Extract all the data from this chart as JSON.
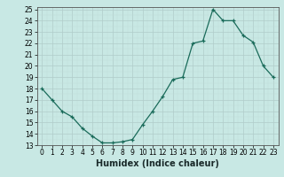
{
  "x": [
    0,
    1,
    2,
    3,
    4,
    5,
    6,
    7,
    8,
    9,
    10,
    11,
    12,
    13,
    14,
    15,
    16,
    17,
    18,
    19,
    20,
    21,
    22,
    23
  ],
  "y": [
    18,
    17,
    16,
    15.5,
    14.5,
    13.8,
    13.2,
    13.2,
    13.3,
    13.5,
    14.8,
    16.0,
    17.3,
    18.8,
    19.0,
    22.0,
    22.2,
    25.0,
    24.0,
    24.0,
    22.7,
    22.1,
    20.0,
    19.0
  ],
  "line_color": "#1a6b5a",
  "marker": "+",
  "bg_color": "#c8e8e4",
  "grid_color_major": "#b0ccca",
  "grid_color_minor": "#c0dcd8",
  "xlabel": "Humidex (Indice chaleur)",
  "ylim": [
    13,
    25
  ],
  "xlim": [
    -0.5,
    23.5
  ],
  "yticks": [
    13,
    14,
    15,
    16,
    17,
    18,
    19,
    20,
    21,
    22,
    23,
    24,
    25
  ],
  "xticks": [
    0,
    1,
    2,
    3,
    4,
    5,
    6,
    7,
    8,
    9,
    10,
    11,
    12,
    13,
    14,
    15,
    16,
    17,
    18,
    19,
    20,
    21,
    22,
    23
  ],
  "tick_fontsize": 5.5,
  "xlabel_fontsize": 7.0
}
